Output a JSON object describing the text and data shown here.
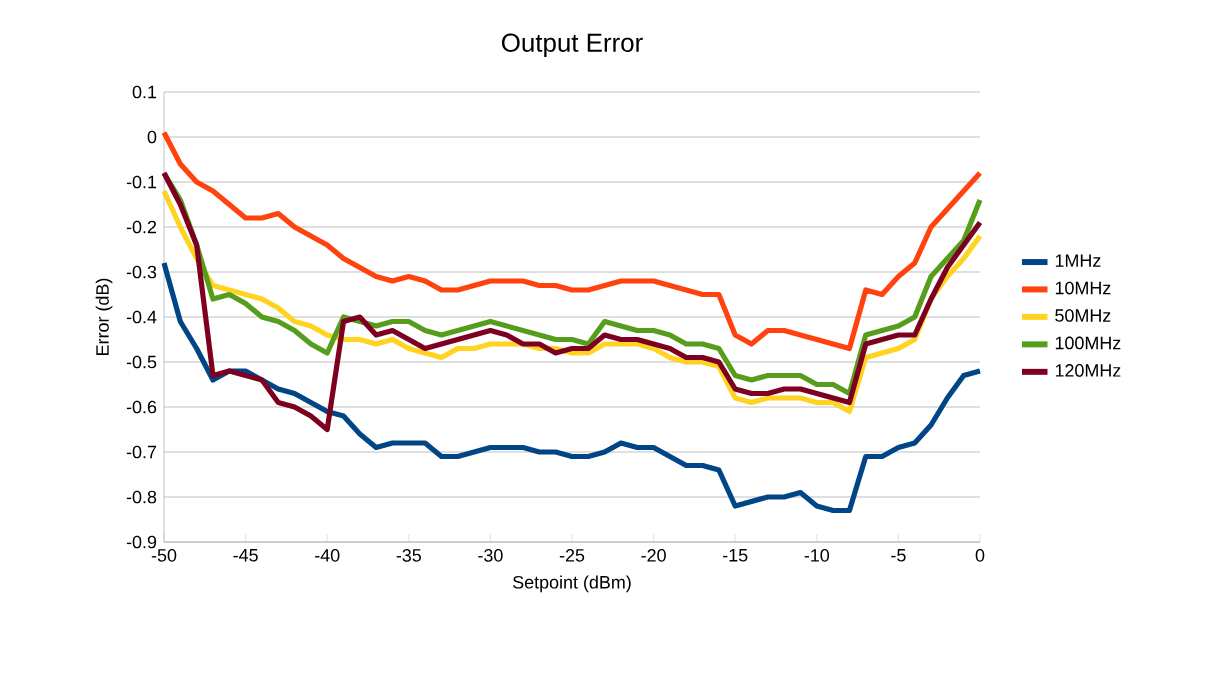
{
  "chart_data": {
    "type": "line",
    "title": "Output Error",
    "xlabel": "Setpoint (dBm)",
    "ylabel": "Error (dB)",
    "x": [
      -50,
      -49,
      -48,
      -47,
      -46,
      -45,
      -44,
      -43,
      -42,
      -41,
      -40,
      -39,
      -38,
      -37,
      -36,
      -35,
      -34,
      -33,
      -32,
      -31,
      -30,
      -29,
      -28,
      -27,
      -26,
      -25,
      -24,
      -23,
      -22,
      -21,
      -20,
      -19,
      -18,
      -17,
      -16,
      -15,
      -14,
      -13,
      -12,
      -11,
      -10,
      -9,
      -8,
      -7,
      -6,
      -5,
      -4,
      -3,
      -2,
      -1,
      0
    ],
    "series": [
      {
        "name": "1MHz",
        "color": "#004586",
        "values": [
          -0.28,
          -0.41,
          -0.47,
          -0.54,
          -0.52,
          -0.52,
          -0.54,
          -0.56,
          -0.57,
          -0.59,
          -0.61,
          -0.62,
          -0.66,
          -0.69,
          -0.68,
          -0.68,
          -0.68,
          -0.71,
          -0.71,
          -0.7,
          -0.69,
          -0.69,
          -0.69,
          -0.7,
          -0.7,
          -0.71,
          -0.71,
          -0.7,
          -0.68,
          -0.69,
          -0.69,
          -0.71,
          -0.73,
          -0.73,
          -0.74,
          -0.82,
          -0.81,
          -0.8,
          -0.8,
          -0.79,
          -0.82,
          -0.83,
          -0.83,
          -0.71,
          -0.71,
          -0.69,
          -0.68,
          -0.64,
          -0.58,
          -0.53,
          -0.52
        ]
      },
      {
        "name": "10MHz",
        "color": "#ff420e",
        "values": [
          0.01,
          -0.06,
          -0.1,
          -0.12,
          -0.15,
          -0.18,
          -0.18,
          -0.17,
          -0.2,
          -0.22,
          -0.24,
          -0.27,
          -0.29,
          -0.31,
          -0.32,
          -0.31,
          -0.32,
          -0.34,
          -0.34,
          -0.33,
          -0.32,
          -0.32,
          -0.32,
          -0.33,
          -0.33,
          -0.34,
          -0.34,
          -0.33,
          -0.32,
          -0.32,
          -0.32,
          -0.33,
          -0.34,
          -0.35,
          -0.35,
          -0.44,
          -0.46,
          -0.43,
          -0.43,
          -0.44,
          -0.45,
          -0.46,
          -0.47,
          -0.34,
          -0.35,
          -0.31,
          -0.28,
          -0.2,
          -0.16,
          -0.12,
          -0.08
        ]
      },
      {
        "name": "50MHz",
        "color": "#ffd320",
        "values": [
          -0.12,
          -0.2,
          -0.27,
          -0.33,
          -0.34,
          -0.35,
          -0.36,
          -0.38,
          -0.41,
          -0.42,
          -0.44,
          -0.45,
          -0.45,
          -0.46,
          -0.45,
          -0.47,
          -0.48,
          -0.49,
          -0.47,
          -0.47,
          -0.46,
          -0.46,
          -0.46,
          -0.47,
          -0.47,
          -0.48,
          -0.48,
          -0.46,
          -0.46,
          -0.46,
          -0.47,
          -0.49,
          -0.5,
          -0.5,
          -0.51,
          -0.58,
          -0.59,
          -0.58,
          -0.58,
          -0.58,
          -0.59,
          -0.59,
          -0.61,
          -0.49,
          -0.48,
          -0.47,
          -0.45,
          -0.36,
          -0.31,
          -0.27,
          -0.22
        ]
      },
      {
        "name": "100MHz",
        "color": "#579d1c",
        "values": [
          -0.08,
          -0.14,
          -0.24,
          -0.36,
          -0.35,
          -0.37,
          -0.4,
          -0.41,
          -0.43,
          -0.46,
          -0.48,
          -0.4,
          -0.41,
          -0.42,
          -0.41,
          -0.41,
          -0.43,
          -0.44,
          -0.43,
          -0.42,
          -0.41,
          -0.42,
          -0.43,
          -0.44,
          -0.45,
          -0.45,
          -0.46,
          -0.41,
          -0.42,
          -0.43,
          -0.43,
          -0.44,
          -0.46,
          -0.46,
          -0.47,
          -0.53,
          -0.54,
          -0.53,
          -0.53,
          -0.53,
          -0.55,
          -0.55,
          -0.57,
          -0.44,
          -0.43,
          -0.42,
          -0.4,
          -0.31,
          -0.27,
          -0.23,
          -0.14
        ]
      },
      {
        "name": "120MHz",
        "color": "#7e0021",
        "values": [
          -0.08,
          -0.15,
          -0.24,
          -0.53,
          -0.52,
          -0.53,
          -0.54,
          -0.59,
          -0.6,
          -0.62,
          -0.65,
          -0.41,
          -0.4,
          -0.44,
          -0.43,
          -0.45,
          -0.47,
          -0.46,
          -0.45,
          -0.44,
          -0.43,
          -0.44,
          -0.46,
          -0.46,
          -0.48,
          -0.47,
          -0.47,
          -0.44,
          -0.45,
          -0.45,
          -0.46,
          -0.47,
          -0.49,
          -0.49,
          -0.5,
          -0.56,
          -0.57,
          -0.57,
          -0.56,
          -0.56,
          -0.57,
          -0.58,
          -0.59,
          -0.46,
          -0.45,
          -0.44,
          -0.44,
          -0.36,
          -0.29,
          -0.24,
          -0.19
        ]
      }
    ],
    "xlim": [
      -50,
      0
    ],
    "xticks": [
      -50,
      -45,
      -40,
      -35,
      -30,
      -25,
      -20,
      -15,
      -10,
      -5,
      0
    ],
    "ylim": [
      -0.9,
      0.1
    ],
    "yticks": [
      -0.9,
      -0.8,
      -0.7,
      -0.6,
      -0.5,
      -0.4,
      -0.3,
      -0.2,
      -0.1,
      0,
      0.1
    ],
    "grid": "y",
    "legend": "right",
    "marker": "none",
    "line_style": "solid"
  }
}
